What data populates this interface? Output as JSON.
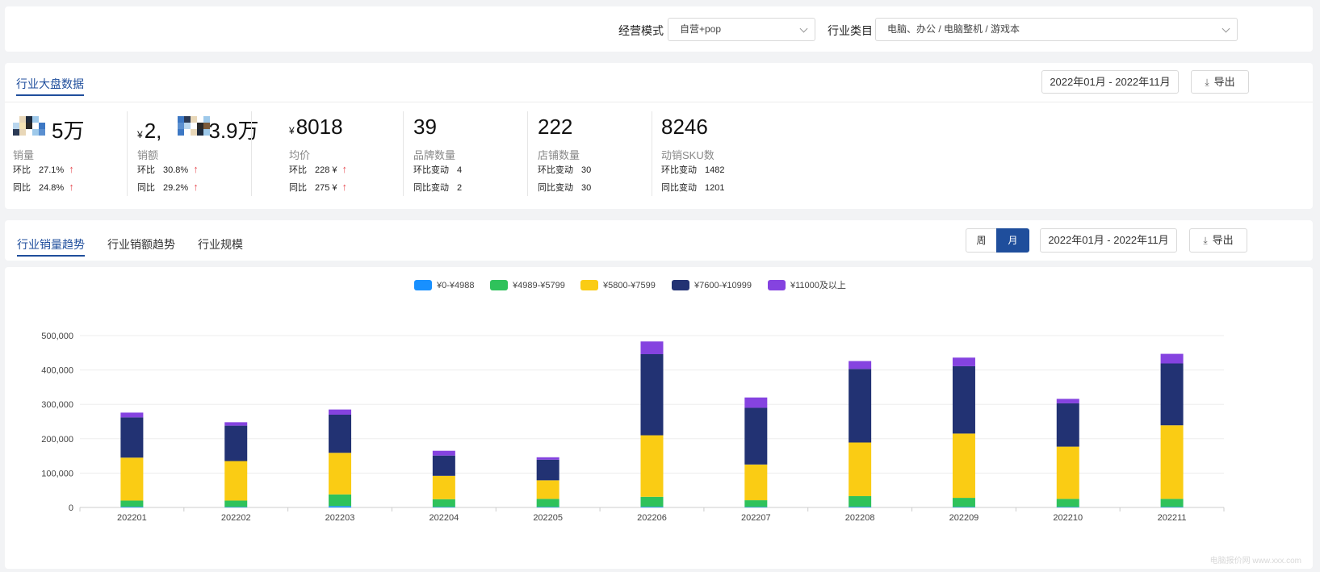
{
  "filters": {
    "mode_label": "经营模式",
    "mode_value": "自营+pop",
    "category_label": "行业类目",
    "category_value": "电脑、办公 / 电脑整机 / 游戏本"
  },
  "overview": {
    "title": "行业大盘数据",
    "date_range": "2022年01月 - 2022年11月",
    "export_label": "导出",
    "kpis": [
      {
        "currency": "",
        "value": "5万",
        "label": "销量",
        "r1_key": "环比",
        "r1_val": "27.1%",
        "r1_up": true,
        "r2_key": "同比",
        "r2_val": "24.8%",
        "r2_up": true
      },
      {
        "currency": "¥",
        "value": "2,",
        "value_tail": "3.9万",
        "label": "销额",
        "r1_key": "环比",
        "r1_val": "30.8%",
        "r1_up": true,
        "r2_key": "同比",
        "r2_val": "29.2%",
        "r2_up": true
      },
      {
        "currency": "¥",
        "value": "8018",
        "label": "均价",
        "r1_key": "环比",
        "r1_val": "228 ¥",
        "r1_up": true,
        "r2_key": "同比",
        "r2_val": "275 ¥",
        "r2_up": true
      },
      {
        "currency": "",
        "value": "39",
        "label": "品牌数量",
        "r1_key": "环比变动",
        "r1_val": "4",
        "r1_up": false,
        "r2_key": "同比变动",
        "r2_val": "2",
        "r2_up": false
      },
      {
        "currency": "",
        "value": "222",
        "label": "店铺数量",
        "r1_key": "环比变动",
        "r1_val": "30",
        "r1_up": false,
        "r2_key": "同比变动",
        "r2_val": "30",
        "r2_up": false
      },
      {
        "currency": "",
        "value": "8246",
        "label": "动销SKU数",
        "r1_key": "环比变动",
        "r1_val": "1482",
        "r1_up": false,
        "r2_key": "同比变动",
        "r2_val": "1201",
        "r2_up": false
      }
    ]
  },
  "trend": {
    "tabs": [
      "行业销量趋势",
      "行业销额趋势",
      "行业规模"
    ],
    "active_tab": 0,
    "period_week": "周",
    "period_month": "月",
    "active_period": "月",
    "date_range": "2022年01月 - 2022年11月",
    "export_label": "导出"
  },
  "colors": {
    "accent": "#1f4e9c",
    "up_arrow": "#e8545a",
    "series": [
      "#1890ff",
      "#2fc25b",
      "#facc14",
      "#223273",
      "#8543e0"
    ]
  },
  "watermark": "电脑报价网 www.xxx.com",
  "chart_data": {
    "type": "bar",
    "stacked": true,
    "categories": [
      "202201",
      "202202",
      "202203",
      "202204",
      "202205",
      "202206",
      "202207",
      "202208",
      "202209",
      "202210",
      "202211"
    ],
    "series": [
      {
        "name": "¥0-¥4988",
        "values": [
          2000,
          1500,
          4000,
          1500,
          1500,
          2000,
          1500,
          2000,
          1500,
          1500,
          1500
        ]
      },
      {
        "name": "¥4989-¥5799",
        "values": [
          18000,
          18500,
          34000,
          22500,
          23500,
          29000,
          19500,
          31000,
          26500,
          23500,
          23500
        ]
      },
      {
        "name": "¥5800-¥7599",
        "values": [
          125000,
          115000,
          121000,
          68000,
          54000,
          179000,
          104000,
          156000,
          187000,
          152000,
          214000
        ]
      },
      {
        "name": "¥7600-¥10999",
        "values": [
          117000,
          103000,
          111000,
          59000,
          60000,
          236000,
          165000,
          214000,
          196000,
          126000,
          180000
        ]
      },
      {
        "name": "¥11000及以上",
        "values": [
          14000,
          10000,
          15000,
          14000,
          7000,
          37000,
          30000,
          23000,
          25000,
          13000,
          28000
        ]
      }
    ],
    "yticks": [
      "0",
      "100,000",
      "200,000",
      "300,000",
      "400,000",
      "500,000"
    ],
    "ylim": [
      0,
      500000
    ],
    "legend_position": "top-center",
    "grid": true
  }
}
